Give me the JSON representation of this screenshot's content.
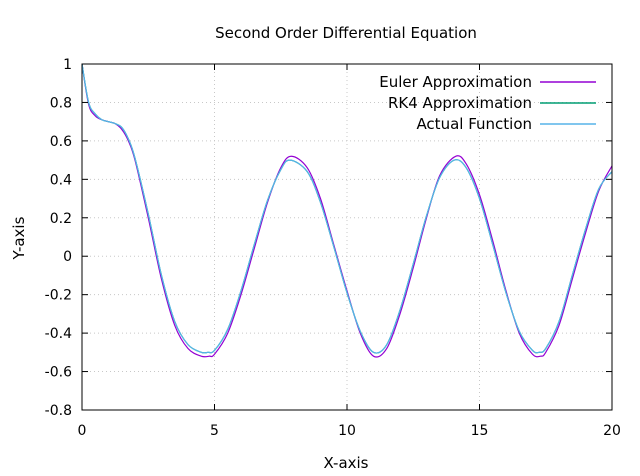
{
  "chart_data": {
    "type": "line",
    "title": "Second Order Differential Equation",
    "xlabel": "X-axis",
    "ylabel": "Y-axis",
    "xlim": [
      0,
      20
    ],
    "ylim": [
      -0.8,
      1
    ],
    "xticks": [
      0,
      5,
      10,
      15,
      20
    ],
    "yticks": [
      -0.8,
      -0.6,
      -0.4,
      -0.2,
      0,
      0.2,
      0.4,
      0.6,
      0.8,
      1
    ],
    "x_tick_labels": [
      "0",
      "5",
      "10",
      "15",
      "20"
    ],
    "y_tick_labels": [
      "-0.8",
      "-0.6",
      "-0.4",
      "-0.2",
      "0",
      "0.2",
      "0.4",
      "0.6",
      "0.8",
      "1"
    ],
    "grid": true,
    "legend_position": "top-right",
    "series": [
      {
        "name": "Euler Approximation",
        "color": "#9400d3",
        "x": [
          0,
          0.25,
          0.5,
          0.75,
          1,
          1.25,
          1.5,
          1.75,
          2,
          2.5,
          3,
          3.5,
          4,
          4.5,
          4.8,
          5,
          5.5,
          6,
          6.5,
          7,
          7.5,
          7.9,
          8.5,
          9,
          9.5,
          10,
          10.5,
          11,
          11.5,
          12,
          12.5,
          13,
          13.5,
          14.1,
          14.5,
          15,
          15.5,
          16,
          16.5,
          17,
          17.3,
          17.5,
          18,
          18.5,
          19,
          19.5,
          20
        ],
        "y": [
          1,
          0.79,
          0.73,
          0.71,
          0.7,
          0.69,
          0.66,
          0.6,
          0.5,
          0.2,
          -0.12,
          -0.36,
          -0.48,
          -0.52,
          -0.52,
          -0.51,
          -0.4,
          -0.2,
          0.04,
          0.28,
          0.46,
          0.52,
          0.46,
          0.3,
          0.06,
          -0.18,
          -0.4,
          -0.52,
          -0.48,
          -0.3,
          -0.06,
          0.2,
          0.42,
          0.52,
          0.48,
          0.32,
          0.08,
          -0.18,
          -0.4,
          -0.51,
          -0.52,
          -0.5,
          -0.36,
          -0.12,
          0.12,
          0.34,
          0.47
        ]
      },
      {
        "name": "RK4 Approximation",
        "color": "#009e73",
        "x": [
          0,
          0.25,
          0.5,
          0.75,
          1,
          1.25,
          1.5,
          1.75,
          2,
          2.5,
          3,
          3.5,
          4,
          4.5,
          4.75,
          5,
          5.5,
          6,
          6.5,
          7,
          7.5,
          7.85,
          8.5,
          9,
          9.5,
          10,
          10.5,
          11,
          11.5,
          12,
          12.5,
          13,
          13.5,
          14.05,
          14.5,
          15,
          15.5,
          16,
          16.5,
          17,
          17.25,
          17.5,
          18,
          18.5,
          19,
          19.5,
          20
        ],
        "y": [
          1,
          0.8,
          0.74,
          0.71,
          0.7,
          0.69,
          0.67,
          0.61,
          0.51,
          0.22,
          -0.1,
          -0.34,
          -0.46,
          -0.5,
          -0.5,
          -0.49,
          -0.38,
          -0.18,
          0.06,
          0.29,
          0.45,
          0.5,
          0.44,
          0.28,
          0.05,
          -0.19,
          -0.39,
          -0.5,
          -0.46,
          -0.28,
          -0.04,
          0.21,
          0.41,
          0.5,
          0.46,
          0.3,
          0.06,
          -0.19,
          -0.39,
          -0.49,
          -0.5,
          -0.48,
          -0.34,
          -0.1,
          0.14,
          0.35,
          0.44
        ]
      },
      {
        "name": "Actual Function",
        "color": "#56b4e9",
        "x": [
          0,
          0.25,
          0.5,
          0.75,
          1,
          1.25,
          1.5,
          1.75,
          2,
          2.5,
          3,
          3.5,
          4,
          4.5,
          4.75,
          5,
          5.5,
          6,
          6.5,
          7,
          7.5,
          7.85,
          8.5,
          9,
          9.5,
          10,
          10.5,
          11,
          11.5,
          12,
          12.5,
          13,
          13.5,
          14.05,
          14.5,
          15,
          15.5,
          16,
          16.5,
          17,
          17.25,
          17.5,
          18,
          18.5,
          19,
          19.5,
          20
        ],
        "y": [
          1,
          0.8,
          0.74,
          0.71,
          0.7,
          0.69,
          0.67,
          0.61,
          0.51,
          0.22,
          -0.1,
          -0.34,
          -0.46,
          -0.5,
          -0.5,
          -0.49,
          -0.38,
          -0.18,
          0.06,
          0.29,
          0.45,
          0.5,
          0.44,
          0.28,
          0.05,
          -0.19,
          -0.39,
          -0.5,
          -0.46,
          -0.28,
          -0.04,
          0.21,
          0.41,
          0.5,
          0.46,
          0.3,
          0.06,
          -0.19,
          -0.39,
          -0.49,
          -0.5,
          -0.48,
          -0.34,
          -0.1,
          0.14,
          0.35,
          0.44
        ]
      }
    ]
  }
}
